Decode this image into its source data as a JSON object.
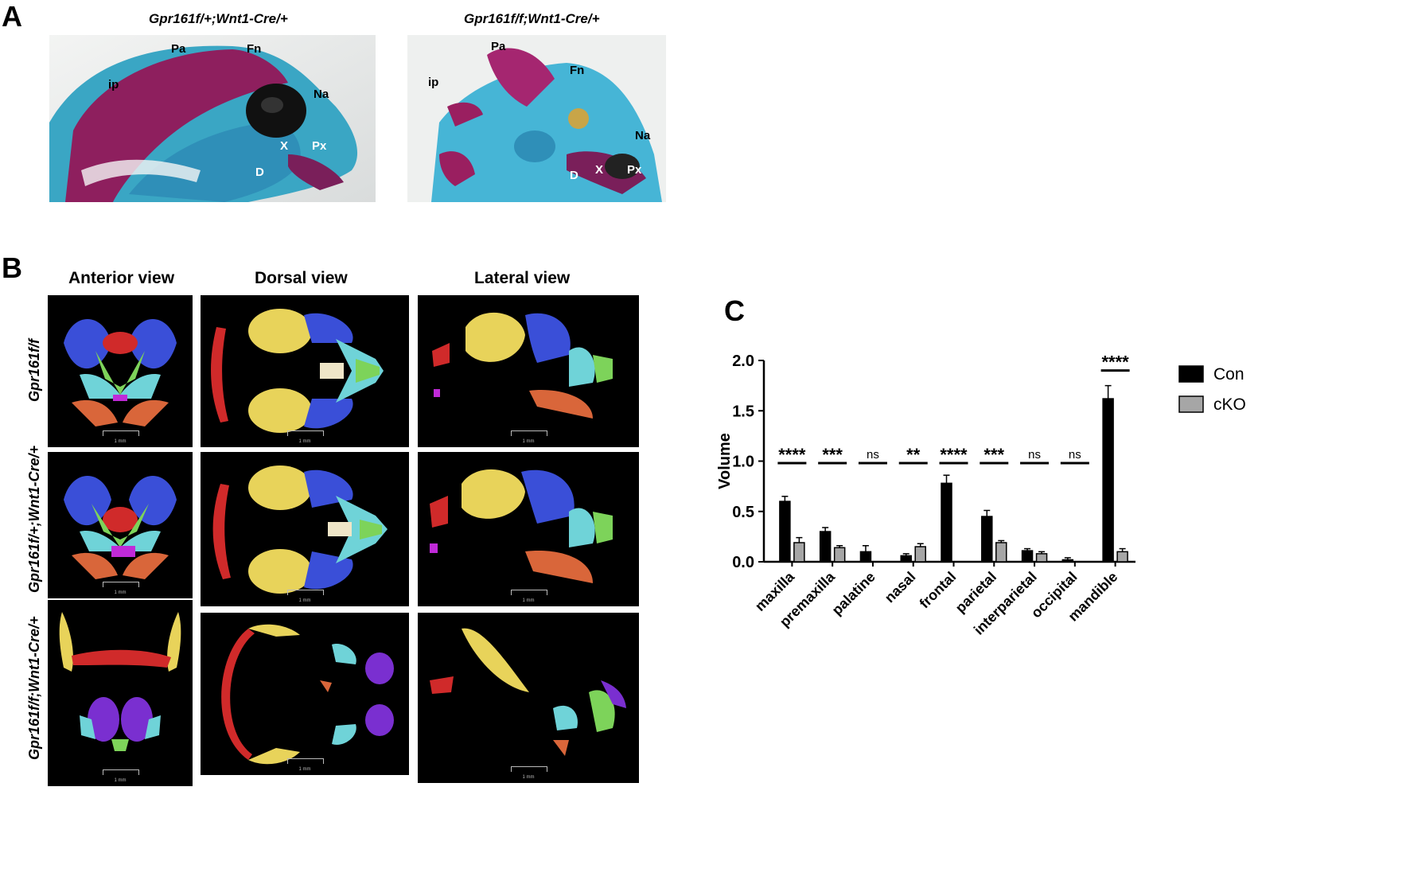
{
  "panel_a": {
    "letter": "A",
    "left_genotype": "Gpr161f/+;Wnt1-Cre/+",
    "right_genotype": "Gpr161f/f;Wnt1-Cre/+",
    "left_labels": {
      "pa": "Pa",
      "fn": "Fn",
      "ip": "ip",
      "na": "Na",
      "x": "X",
      "px": "Px",
      "d": "D"
    },
    "right_labels": {
      "pa": "Pa",
      "fn": "Fn",
      "ip": "ip",
      "na": "Na",
      "x": "X",
      "px": "Px",
      "d": "D"
    }
  },
  "panel_b": {
    "letter": "B",
    "views": [
      "Anterior view",
      "Dorsal view",
      "Lateral view"
    ],
    "rows": [
      "Gpr161f/f",
      "Gpr161f/+;Wnt1-Cre/+",
      "Gpr161f/f;Wnt1-Cre/+"
    ],
    "scale_label": "1 mm"
  },
  "panel_c": {
    "letter": "C"
  },
  "colors": {
    "con": "#000000",
    "cko": "#a6a6a6",
    "bone_yellow": "#e8d35a",
    "bone_blue": "#3a4fd8",
    "bone_red": "#d02a2a",
    "bone_orange": "#d9663a",
    "bone_cyan": "#6fd3d8",
    "bone_green": "#7dd35a",
    "bone_purple": "#7a2fd0"
  },
  "chart_data": {
    "type": "bar",
    "ylabel": "Volume",
    "ylim": [
      0,
      2.0
    ],
    "yticks": [
      "0.0",
      "0.5",
      "1.0",
      "1.5",
      "2.0"
    ],
    "categories": [
      "maxilla",
      "premaxilla",
      "palatine",
      "nasal",
      "frontal",
      "parietal",
      "interparietal",
      "occipital",
      "mandible"
    ],
    "series": [
      {
        "name": "Con",
        "values": [
          0.6,
          0.3,
          0.1,
          0.06,
          0.78,
          0.45,
          0.11,
          0.02,
          1.62
        ],
        "errors": [
          0.05,
          0.04,
          0.06,
          0.02,
          0.08,
          0.06,
          0.02,
          0.02,
          0.13
        ]
      },
      {
        "name": "cKO",
        "values": [
          0.19,
          0.14,
          0.0,
          0.15,
          0.0,
          0.19,
          0.08,
          0.0,
          0.1
        ],
        "errors": [
          0.05,
          0.02,
          0.0,
          0.03,
          0.0,
          0.02,
          0.02,
          0.0,
          0.03
        ]
      }
    ],
    "significance": [
      "****",
      "***",
      "ns",
      "**",
      "****",
      "***",
      "ns",
      "ns",
      "****"
    ],
    "legend_position": "right"
  }
}
